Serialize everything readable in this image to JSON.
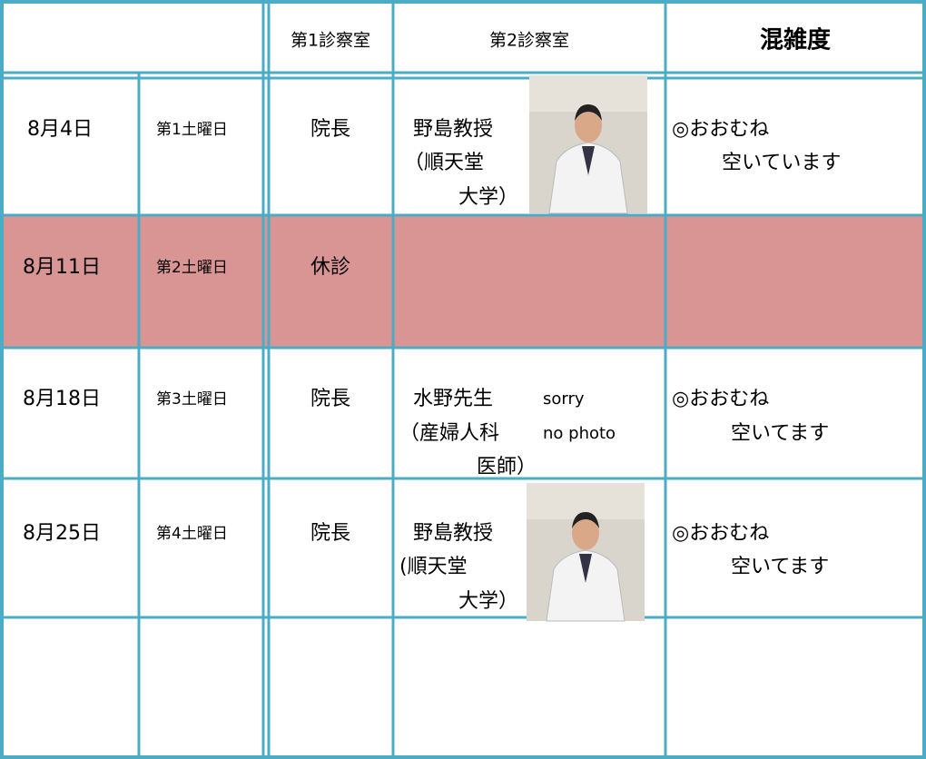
{
  "header": {
    "cells": [
      "第1診察室",
      "第2診察室",
      "混雑度"
    ]
  },
  "rows": [
    {
      "date": "8月4日",
      "week": "第1土曜日",
      "room1": "院長",
      "room2": [
        "野島教授",
        "（順天堂",
        "大学）"
      ],
      "congestion": [
        "◎おおむね",
        "空いています"
      ]
    },
    {
      "date": "8月11日",
      "week": "第2土曜日",
      "room1": "休診"
    },
    {
      "date": "8月18日",
      "week": "第3土曜日",
      "room1": "院長",
      "room2": [
        "水野先生",
        "（産婦人科",
        "医師）"
      ],
      "photo_note": [
        "sorry",
        "no photo"
      ],
      "congestion": [
        "◎おおむね",
        "空いてます"
      ]
    },
    {
      "date": "8月25日",
      "week": "第4土曜日",
      "room1": "院長",
      "room2": [
        "野島教授",
        "(順天堂",
        "大学）"
      ],
      "congestion": [
        "◎おおむね",
        "空いてます"
      ]
    }
  ]
}
